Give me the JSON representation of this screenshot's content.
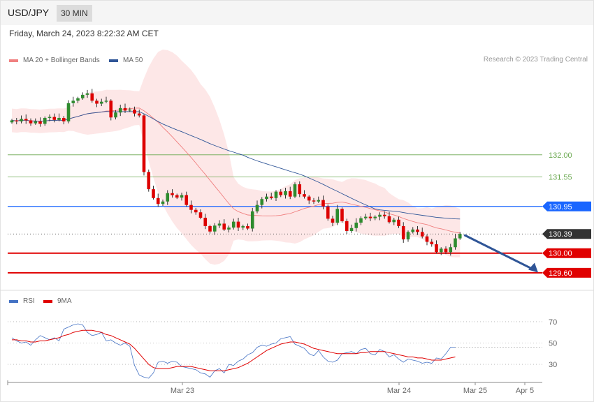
{
  "header": {
    "symbol": "USD/JPY",
    "timeframe": "30 MIN"
  },
  "timestamp": "Friday, March 24, 2023 8:22:32 AM CET",
  "legend": {
    "ma20": {
      "label": "MA 20 + Bollinger Bands",
      "color": "#f08080"
    },
    "ma50": {
      "label": "MA 50",
      "color": "#2f5597"
    },
    "rsi": {
      "label": "RSI",
      "color": "#4472c4"
    },
    "rsi9": {
      "label": "9MA",
      "color": "#e00000"
    }
  },
  "credit": "Research © 2023 Trading Central",
  "chart_data": [
    {
      "type": "candlestick",
      "title": "USD/JPY",
      "timeframe": "30 MIN",
      "ylim": [
        129.3,
        133.8
      ],
      "x_ticks": [
        "Mar 23",
        "Mar 24",
        "Mar 25",
        "Apr 5"
      ],
      "levels": [
        {
          "value": 132.0,
          "label": "132.00",
          "color": "#6aa84f",
          "style": "thin"
        },
        {
          "value": 131.55,
          "label": "131.55",
          "color": "#6aa84f",
          "style": "thin"
        },
        {
          "value": 130.95,
          "label": "130.95",
          "color": "#1a66ff",
          "style": "medium"
        },
        {
          "value": 130.39,
          "label": "130.39",
          "color": "#333333",
          "style": "dotted"
        },
        {
          "value": 130.0,
          "label": "130.00",
          "color": "#e00000",
          "style": "thick"
        },
        {
          "value": 129.6,
          "label": "129.60",
          "color": "#e00000",
          "style": "thick"
        }
      ],
      "forecast_arrow": {
        "from": 130.37,
        "to": 129.62,
        "color": "#2f5597"
      },
      "closes": [
        132.7,
        132.68,
        132.73,
        132.7,
        132.64,
        132.68,
        132.63,
        132.75,
        132.77,
        132.71,
        132.75,
        132.68,
        133.05,
        133.1,
        133.15,
        133.22,
        133.25,
        133.1,
        133.04,
        133.08,
        133.1,
        132.76,
        132.86,
        132.95,
        132.9,
        132.92,
        132.84,
        132.8,
        131.65,
        131.3,
        131.12,
        131.0,
        131.05,
        131.22,
        131.18,
        131.13,
        131.18,
        130.98,
        130.88,
        130.83,
        130.72,
        130.55,
        130.44,
        130.56,
        130.6,
        130.48,
        130.52,
        130.64,
        130.52,
        130.55,
        130.5,
        130.85,
        130.98,
        131.1,
        131.15,
        131.12,
        131.25,
        131.18,
        131.26,
        131.15,
        131.4,
        131.2,
        131.15,
        131.07,
        131.05,
        131.08,
        130.95,
        130.7,
        130.62,
        130.9,
        130.65,
        130.45,
        130.51,
        130.62,
        130.71,
        130.74,
        130.71,
        130.74,
        130.78,
        130.75,
        130.63,
        130.68,
        130.55,
        130.28,
        130.43,
        130.48,
        130.43,
        130.34,
        130.23,
        130.18,
        130.02,
        130.09,
        130.02,
        130.12,
        130.3,
        130.39
      ]
    },
    {
      "type": "line",
      "title": "RSI",
      "ylim": [
        15,
        85
      ],
      "y_ticks": [
        70,
        50,
        30
      ],
      "x_ticks": [
        "Mar 23",
        "Mar 24",
        "Mar 25",
        "Apr 5"
      ],
      "series": [
        {
          "name": "RSI",
          "color": "#4472c4",
          "values": [
            55,
            52,
            50,
            51,
            48,
            53,
            57,
            55,
            53,
            55,
            52,
            63,
            65,
            67,
            68,
            67,
            60,
            57,
            58,
            60,
            52,
            53,
            50,
            48,
            50,
            47,
            29,
            20,
            18,
            17,
            22,
            32,
            33,
            31,
            33,
            32,
            28,
            27,
            26,
            25,
            22,
            21,
            18,
            24,
            26,
            22,
            30,
            29,
            33,
            35,
            39,
            41,
            46,
            48,
            47,
            49,
            50,
            54,
            55,
            56,
            49,
            47,
            45,
            40,
            38,
            43,
            37,
            33,
            32,
            34,
            40,
            41,
            42,
            40,
            44,
            45,
            40,
            39,
            44,
            42,
            37,
            39,
            35,
            32,
            35,
            34,
            33,
            31,
            32,
            31,
            36,
            35,
            40,
            46,
            46
          ]
        },
        {
          "name": "9MA",
          "color": "#e00000",
          "values": [
            53,
            53,
            52,
            52,
            51,
            51,
            52,
            52,
            53,
            54,
            55,
            57,
            58,
            60,
            61,
            62,
            62,
            62,
            61,
            60,
            58,
            57,
            55,
            53,
            51,
            49,
            45,
            40,
            35,
            30,
            27,
            26,
            26,
            26,
            27,
            28,
            28,
            28,
            28,
            27,
            26,
            25,
            24,
            24,
            24,
            24,
            25,
            26,
            27,
            29,
            31,
            34,
            37,
            40,
            43,
            45,
            47,
            49,
            50,
            51,
            51,
            50,
            49,
            47,
            45,
            44,
            43,
            42,
            41,
            40,
            40,
            40,
            40,
            40,
            41,
            41,
            42,
            42,
            42,
            42,
            41,
            40,
            39,
            38,
            37,
            37,
            36,
            36,
            35,
            34,
            34,
            34,
            35,
            36,
            37
          ]
        }
      ]
    }
  ]
}
